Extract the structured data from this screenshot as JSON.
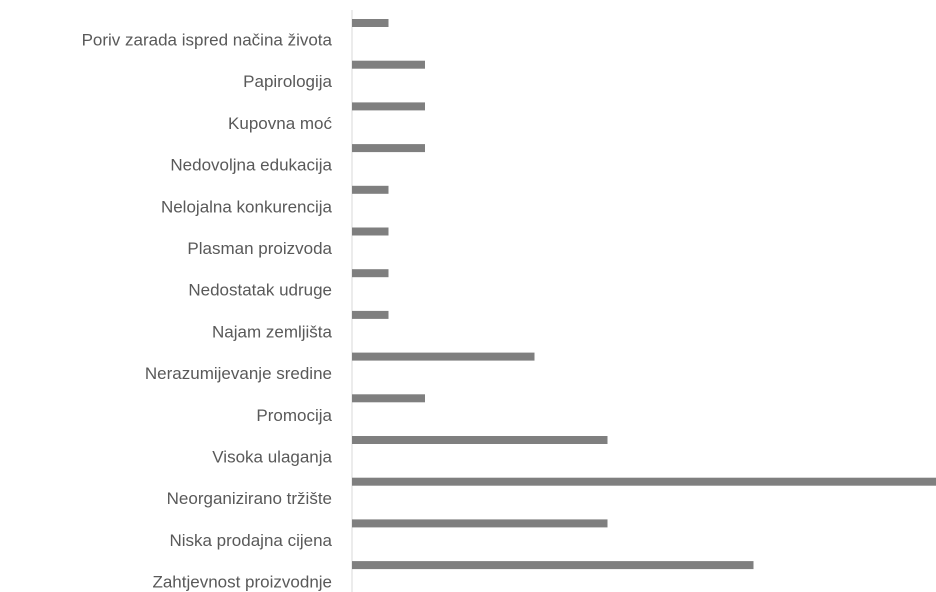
{
  "chart_data": {
    "type": "bar",
    "orientation": "horizontal",
    "categories": [
      "Poriv zarada ispred načina života",
      "Papirologija",
      "Kupovna moć ",
      "Nedovoljna edukacija",
      "Nelojalna konkurencija",
      "Plasman proizvoda",
      "Nedostatak udruge",
      "Najam zemljišta",
      "Nerazumijevanje sredine",
      "Promocija",
      "Visoka ulaganja",
      "Neorganizirano tržište",
      "Niska prodajna cijena",
      "Zahtjevnost proizvodnje"
    ],
    "values": [
      1,
      2,
      2,
      2,
      1,
      1,
      1,
      1,
      5,
      2,
      7,
      16,
      7,
      11
    ],
    "color": "#7f7f7f",
    "xlim": [
      0,
      16
    ]
  }
}
